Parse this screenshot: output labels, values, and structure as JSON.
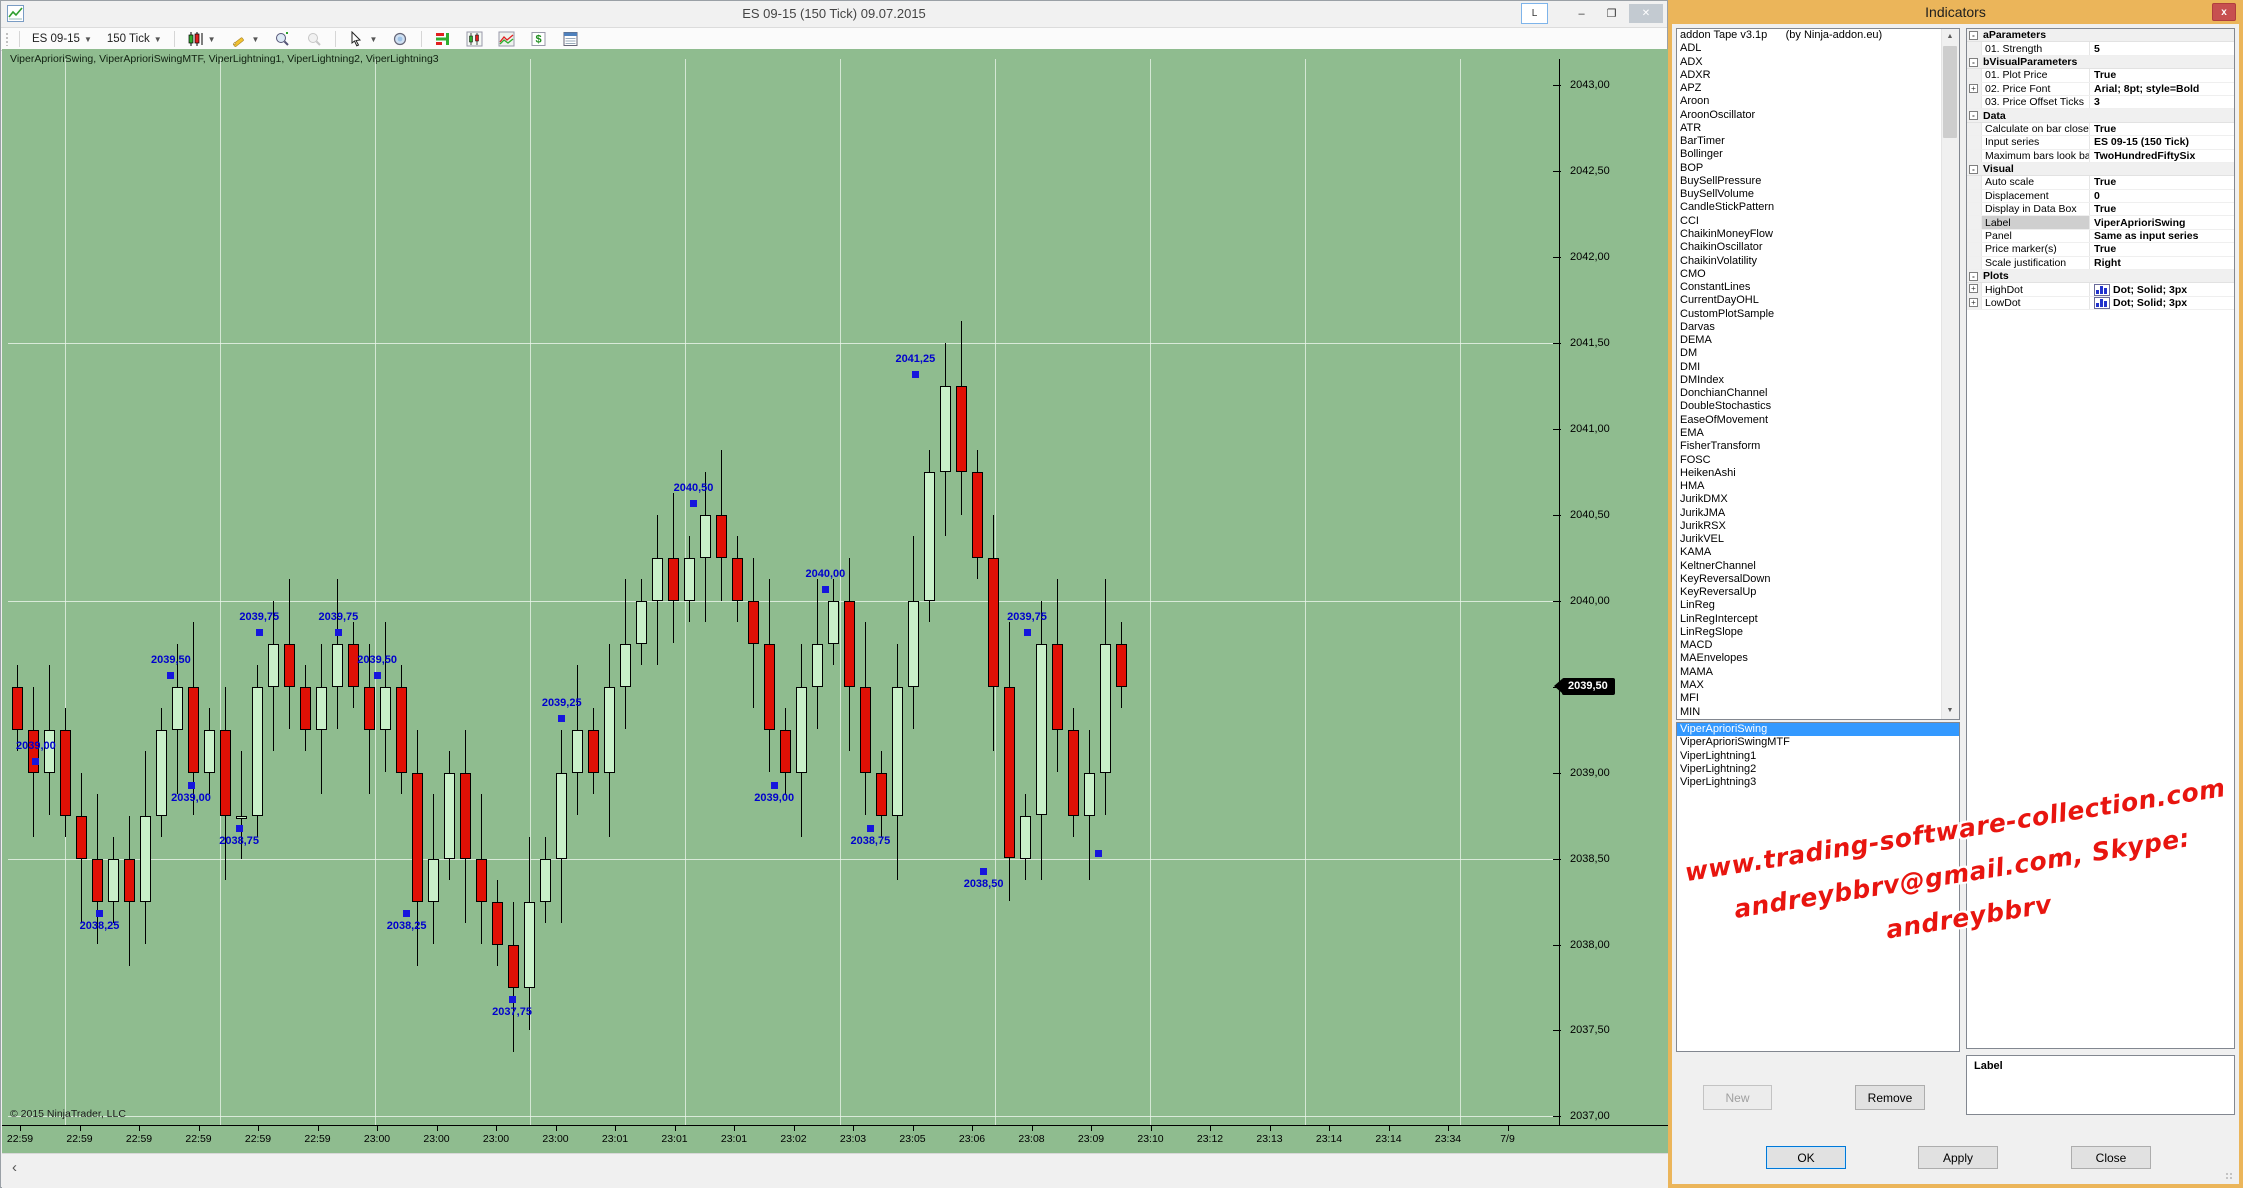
{
  "window": {
    "title": "ES 09-15 (150 Tick)  09.07.2015",
    "buttons": {
      "link": "L",
      "minimize": "–",
      "maximize": "❐",
      "close": "✕"
    },
    "toolbar": {
      "instrument": "ES 09-15",
      "interval": "150 Tick",
      "icon_names": [
        "grip-handle",
        "instrument-dropdown",
        "interval-dropdown",
        "chart-style-icon",
        "drawing-tools-icon",
        "zoom-in-icon",
        "zoom-out-icon",
        "cursor-icon",
        "region-zoom-icon",
        "chart-trader-icon",
        "candles-icon",
        "line-chart-icon",
        "dollar-icon",
        "data-panel-icon"
      ]
    },
    "indicator_label": "ViperAprioriSwing, ViperAprioriSwingMTF, ViperLightning1, ViperLightning2, ViperLightning3",
    "copyright": "© 2015 NinjaTrader, LLC",
    "hscroll_left_arrow": "‹"
  },
  "chart_data": {
    "type": "candlestick",
    "title": "ES 09-15 (150 Tick) 09.07.2015",
    "ylim": [
      2037.0,
      2043.0
    ],
    "y_tick_step": 0.5,
    "y_tick_labels": [
      "2043,00",
      "2042,50",
      "2042,00",
      "2041,50",
      "2041,00",
      "2040,50",
      "2040,00",
      "2039,50",
      "2039,00",
      "2038,50",
      "2038,00",
      "2037,50",
      "2037,00"
    ],
    "x_tick_labels": [
      "22:59",
      "22:59",
      "22:59",
      "22:59",
      "22:59",
      "22:59",
      "23:00",
      "23:00",
      "23:00",
      "23:00",
      "23:01",
      "23:01",
      "23:01",
      "23:02",
      "23:03",
      "23:05",
      "23:06",
      "23:08",
      "23:09",
      "23:10",
      "23:12",
      "23:13",
      "23:14",
      "23:14",
      "23:34",
      "7/9"
    ],
    "h_gridline_prices": [
      2041.5,
      2040.0,
      2038.5,
      2037.0
    ],
    "current_price": 2039.5,
    "current_price_label": "2039,50",
    "first_open": 2039.5,
    "closes": [
      2039.25,
      2039.0,
      2039.25,
      2038.75,
      2038.5,
      2038.25,
      2038.5,
      2038.25,
      2038.75,
      2039.25,
      2039.5,
      2039.0,
      2039.25,
      2038.75,
      2038.75,
      2039.5,
      2039.75,
      2039.5,
      2039.25,
      2039.5,
      2039.75,
      2039.5,
      2039.25,
      2039.5,
      2039.0,
      2038.25,
      2038.5,
      2039.0,
      2038.5,
      2038.25,
      2038.0,
      2037.75,
      2038.25,
      2038.5,
      2039.0,
      2039.25,
      2039.0,
      2039.5,
      2039.75,
      2040.0,
      2040.25,
      2040.0,
      2040.25,
      2040.5,
      2040.25,
      2040.0,
      2039.75,
      2039.25,
      2039.0,
      2039.5,
      2039.75,
      2040.0,
      2039.5,
      2039.0,
      2038.75,
      2039.5,
      2040.0,
      2040.75,
      2041.25,
      2040.75,
      2040.25,
      2039.5,
      2038.5,
      2038.75,
      2039.75,
      2039.25,
      2038.75,
      2039.0,
      2039.75,
      2039.5
    ],
    "swing_annotations": [
      {
        "x_pct": 1.8,
        "label": "2039,00",
        "price": 2039.0,
        "side": "high"
      },
      {
        "x_pct": 5.9,
        "label": "2038,25",
        "price": 2038.25,
        "side": "low"
      },
      {
        "x_pct": 10.5,
        "label": "2039,50",
        "price": 2039.5,
        "side": "high"
      },
      {
        "x_pct": 11.8,
        "label": "2039,00",
        "price": 2039.0,
        "side": "low"
      },
      {
        "x_pct": 14.9,
        "label": "2038,75",
        "price": 2038.75,
        "side": "low"
      },
      {
        "x_pct": 16.2,
        "label": "2039,75",
        "price": 2039.75,
        "side": "high"
      },
      {
        "x_pct": 21.3,
        "label": "2039,75",
        "price": 2039.75,
        "side": "high"
      },
      {
        "x_pct": 23.8,
        "label": "2039,50",
        "price": 2039.5,
        "side": "high"
      },
      {
        "x_pct": 25.7,
        "label": "2038,25",
        "price": 2038.25,
        "side": "low"
      },
      {
        "x_pct": 32.5,
        "label": "2037,75",
        "price": 2037.75,
        "side": "low"
      },
      {
        "x_pct": 35.7,
        "label": "2039,25",
        "price": 2039.25,
        "side": "high"
      },
      {
        "x_pct": 44.2,
        "label": "2040,50",
        "price": 2040.5,
        "side": "high"
      },
      {
        "x_pct": 49.4,
        "label": "2039,00",
        "price": 2039.0,
        "side": "low"
      },
      {
        "x_pct": 52.7,
        "label": "2040,00",
        "price": 2040.0,
        "side": "high"
      },
      {
        "x_pct": 55.6,
        "label": "2038,75",
        "price": 2038.75,
        "side": "low"
      },
      {
        "x_pct": 58.5,
        "label": "2041,25",
        "price": 2041.25,
        "side": "high"
      },
      {
        "x_pct": 62.9,
        "label": "2038,50",
        "price": 2038.5,
        "side": "low"
      },
      {
        "x_pct": 65.7,
        "label": "2039,75",
        "price": 2039.75,
        "side": "high"
      },
      {
        "x_pct": 70.3,
        "label": "",
        "price": 2038.6,
        "side": "low",
        "dot_only": true
      }
    ],
    "colors": {
      "chart_bg": "#8FBC8F",
      "grid": "#E8F4E8",
      "up_candle": "#C9F0C9",
      "down_candle": "#E01005",
      "candle_border": "#000000",
      "swing_blue": "#0000CD",
      "price_marker_bg": "#000000",
      "price_marker_text": "#FFFFFF"
    }
  },
  "dialog": {
    "title": "Indicators",
    "close_glyph": "x",
    "available_indicators": [
      "addon Tape v3.1p      (by Ninja-addon.eu)",
      "ADL",
      "ADX",
      "ADXR",
      "APZ",
      "Aroon",
      "AroonOscillator",
      "ATR",
      "BarTimer",
      "Bollinger",
      "BOP",
      "BuySellPressure",
      "BuySellVolume",
      "CandleStickPattern",
      "CCI",
      "ChaikinMoneyFlow",
      "ChaikinOscillator",
      "ChaikinVolatility",
      "CMO",
      "ConstantLines",
      "CurrentDayOHL",
      "CustomPlotSample",
      "Darvas",
      "DEMA",
      "DM",
      "DMI",
      "DMIndex",
      "DonchianChannel",
      "DoubleStochastics",
      "EaseOfMovement",
      "EMA",
      "FisherTransform",
      "FOSC",
      "HeikenAshi",
      "HMA",
      "JurikDMX",
      "JurikJMA",
      "JurikRSX",
      "JurikVEL",
      "KAMA",
      "KeltnerChannel",
      "KeyReversalDown",
      "KeyReversalUp",
      "LinReg",
      "LinRegIntercept",
      "LinRegSlope",
      "MACD",
      "MAEnvelopes",
      "MAMA",
      "MAX",
      "MFI",
      "MIN"
    ],
    "selected_indicators": [
      "ViperAprioriSwing",
      "ViperAprioriSwingMTF",
      "ViperLightning1",
      "ViperLightning2",
      "ViperLightning3"
    ],
    "selected_index": 0,
    "property_grid": [
      {
        "type": "group",
        "label": "aParameters",
        "expander": "-"
      },
      {
        "type": "row",
        "name": "01. Strength",
        "value": "5"
      },
      {
        "type": "group",
        "label": "bVisualParameters",
        "expander": "-"
      },
      {
        "type": "row",
        "name": "01. Plot Price",
        "value": "True"
      },
      {
        "type": "row",
        "name": "02. Price Font",
        "value": "Arial; 8pt; style=Bold",
        "expander": "+"
      },
      {
        "type": "row",
        "name": "03. Price Offset Ticks",
        "value": "3"
      },
      {
        "type": "group",
        "label": "Data",
        "expander": "-"
      },
      {
        "type": "row",
        "name": "Calculate on bar close",
        "value": "True"
      },
      {
        "type": "row",
        "name": "Input series",
        "value": "ES 09-15 (150 Tick)"
      },
      {
        "type": "row",
        "name": "Maximum bars look ba",
        "value": "TwoHundredFiftySix"
      },
      {
        "type": "group",
        "label": "Visual",
        "expander": "-"
      },
      {
        "type": "row",
        "name": "Auto scale",
        "value": "True"
      },
      {
        "type": "row",
        "name": "Displacement",
        "value": "0"
      },
      {
        "type": "row",
        "name": "Display in Data Box",
        "value": "True"
      },
      {
        "type": "row",
        "name": "Label",
        "value": "ViperAprioriSwing",
        "selected": true
      },
      {
        "type": "row",
        "name": "Panel",
        "value": "Same as input series"
      },
      {
        "type": "row",
        "name": "Price marker(s)",
        "value": "True"
      },
      {
        "type": "row",
        "name": "Scale justification",
        "value": "Right"
      },
      {
        "type": "group",
        "label": "Plots",
        "expander": "-"
      },
      {
        "type": "row",
        "name": "HighDot",
        "value": "Dot; Solid; 3px",
        "expander": "+",
        "icon": "plot-style-icon"
      },
      {
        "type": "row",
        "name": "LowDot",
        "value": "Dot; Solid; 3px",
        "expander": "+",
        "icon": "plot-style-icon"
      }
    ],
    "description_title": "Label",
    "buttons": {
      "new": "New",
      "remove": "Remove",
      "ok": "OK",
      "apply": "Apply",
      "close": "Close"
    }
  },
  "watermark": {
    "lines": [
      "www.trading-software-collection.com",
      "andreybbrv@gmail.com, Skype: andreybbrv"
    ],
    "color": "#e8150f"
  }
}
